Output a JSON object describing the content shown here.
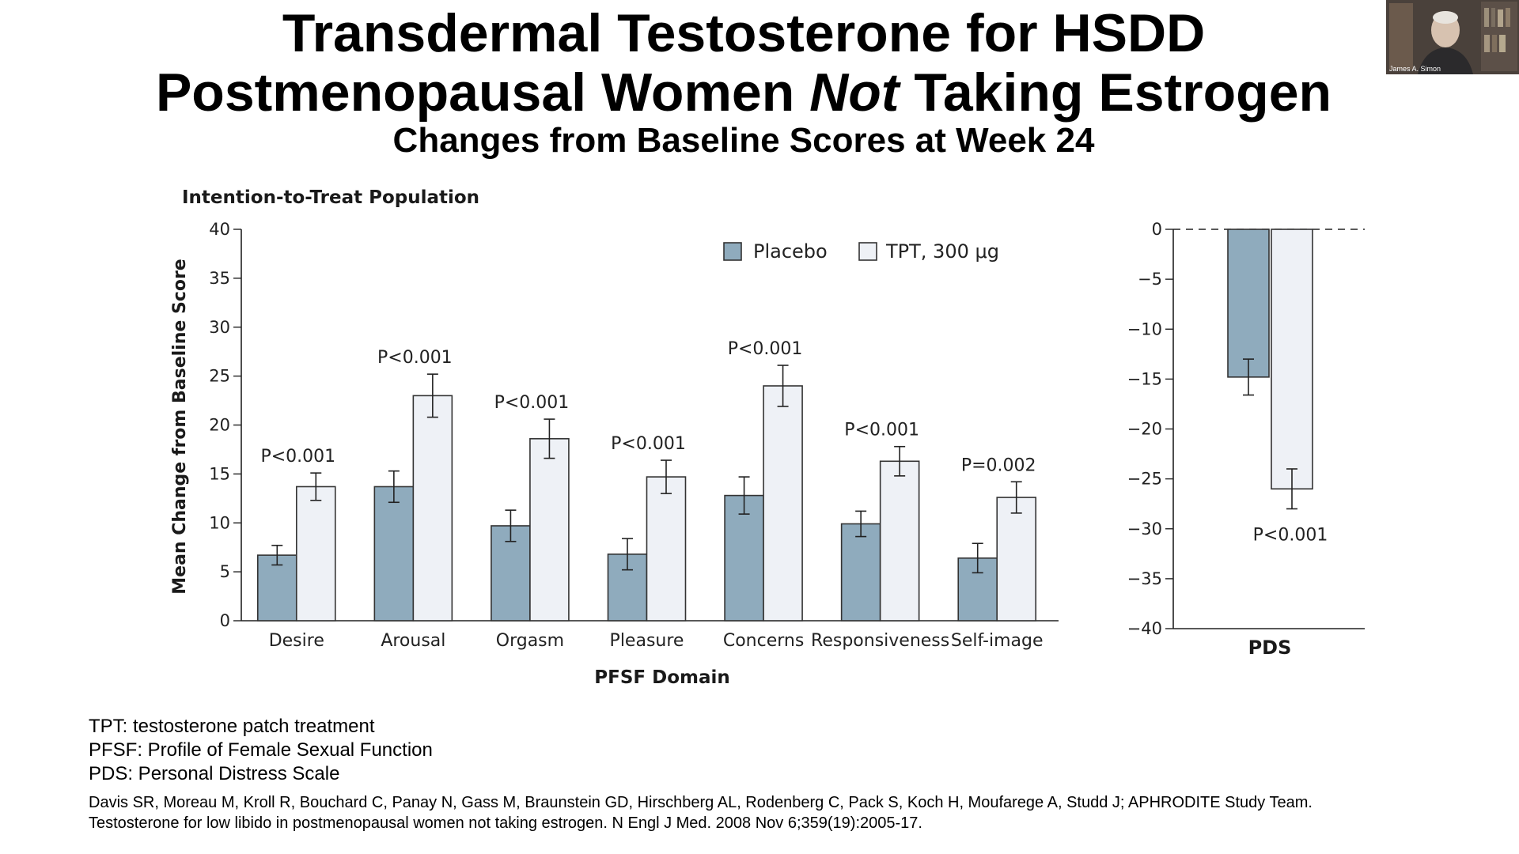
{
  "slide": {
    "title_line1": "Transdermal Testosterone for HSDD",
    "title_line2_before": "Postmenopausal Women ",
    "title_line2_italic": "Not",
    "title_line2_after": " Taking Estrogen",
    "subtitle": "Changes from Baseline Scores at Week 24"
  },
  "webcam": {
    "name": "James A. Simon"
  },
  "colors": {
    "placebo": "#8fabbd",
    "tpt": "#eef1f6",
    "stroke": "#333333"
  },
  "chart_data": [
    {
      "type": "bar",
      "panel_label": "Intention-to-Treat Population",
      "xlabel": "PFSF Domain",
      "ylabel": "Mean Change from Baseline Score",
      "ylim": [
        0,
        40
      ],
      "yticks": [
        0,
        5,
        10,
        15,
        20,
        25,
        30,
        35,
        40
      ],
      "legend_position": "top-right",
      "categories": [
        "Desire",
        "Arousal",
        "Orgasm",
        "Pleasure",
        "Concerns",
        "Responsiveness",
        "Self-image"
      ],
      "series": [
        {
          "name": "Placebo",
          "values": [
            6.7,
            13.7,
            9.7,
            6.8,
            12.8,
            9.9,
            6.4
          ],
          "error": [
            1.0,
            1.6,
            1.6,
            1.6,
            1.9,
            1.3,
            1.5
          ]
        },
        {
          "name": "TPT, 300 μg",
          "values": [
            13.7,
            23.0,
            18.6,
            14.7,
            24.0,
            16.3,
            12.6
          ],
          "error": [
            1.4,
            2.2,
            2.0,
            1.7,
            2.1,
            1.5,
            1.6
          ]
        }
      ],
      "annotations": [
        "P<0.001",
        "P<0.001",
        "P<0.001",
        "P<0.001",
        "P<0.001",
        "P<0.001",
        "P=0.002"
      ]
    },
    {
      "type": "bar",
      "categories": [
        "PDS"
      ],
      "ylim": [
        -40,
        0
      ],
      "yticks": [
        0,
        -5,
        -10,
        -15,
        -20,
        -25,
        -30,
        -35,
        -40
      ],
      "series": [
        {
          "name": "Placebo",
          "values": [
            -14.8
          ],
          "error": [
            1.8
          ]
        },
        {
          "name": "TPT, 300 μg",
          "values": [
            -26.0
          ],
          "error": [
            2.0
          ]
        }
      ],
      "annotations": [
        "P<0.001"
      ]
    }
  ],
  "footnotes": [
    "TPT: testosterone patch treatment",
    "PFSF: Profile of Female Sexual Function",
    "PDS: Personal Distress Scale"
  ],
  "citation": [
    "Davis SR, Moreau M, Kroll R, Bouchard C, Panay N, Gass M, Braunstein GD, Hirschberg AL, Rodenberg C, Pack S, Koch H, Moufarege A, Studd J; APHRODITE Study Team.",
    "Testosterone for low libido in postmenopausal women not taking estrogen. N Engl J Med. 2008 Nov 6;359(19):2005-17."
  ]
}
